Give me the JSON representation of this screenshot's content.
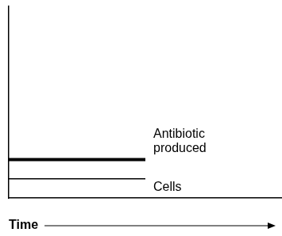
{
  "chart_data": {
    "type": "line",
    "xlabel": "Time",
    "x": [
      0,
      5
    ],
    "series": [
      {
        "name": "Antibiotic produced",
        "color": "#000000",
        "line_style": "thick",
        "values": [
          20,
          20
        ]
      },
      {
        "name": "Cells",
        "color": "#000000",
        "line_style": "thin",
        "values": [
          10,
          10
        ]
      }
    ],
    "xlim": [
      0,
      10
    ],
    "ylim": [
      0,
      100
    ],
    "tick_labels": false,
    "grid": false
  }
}
